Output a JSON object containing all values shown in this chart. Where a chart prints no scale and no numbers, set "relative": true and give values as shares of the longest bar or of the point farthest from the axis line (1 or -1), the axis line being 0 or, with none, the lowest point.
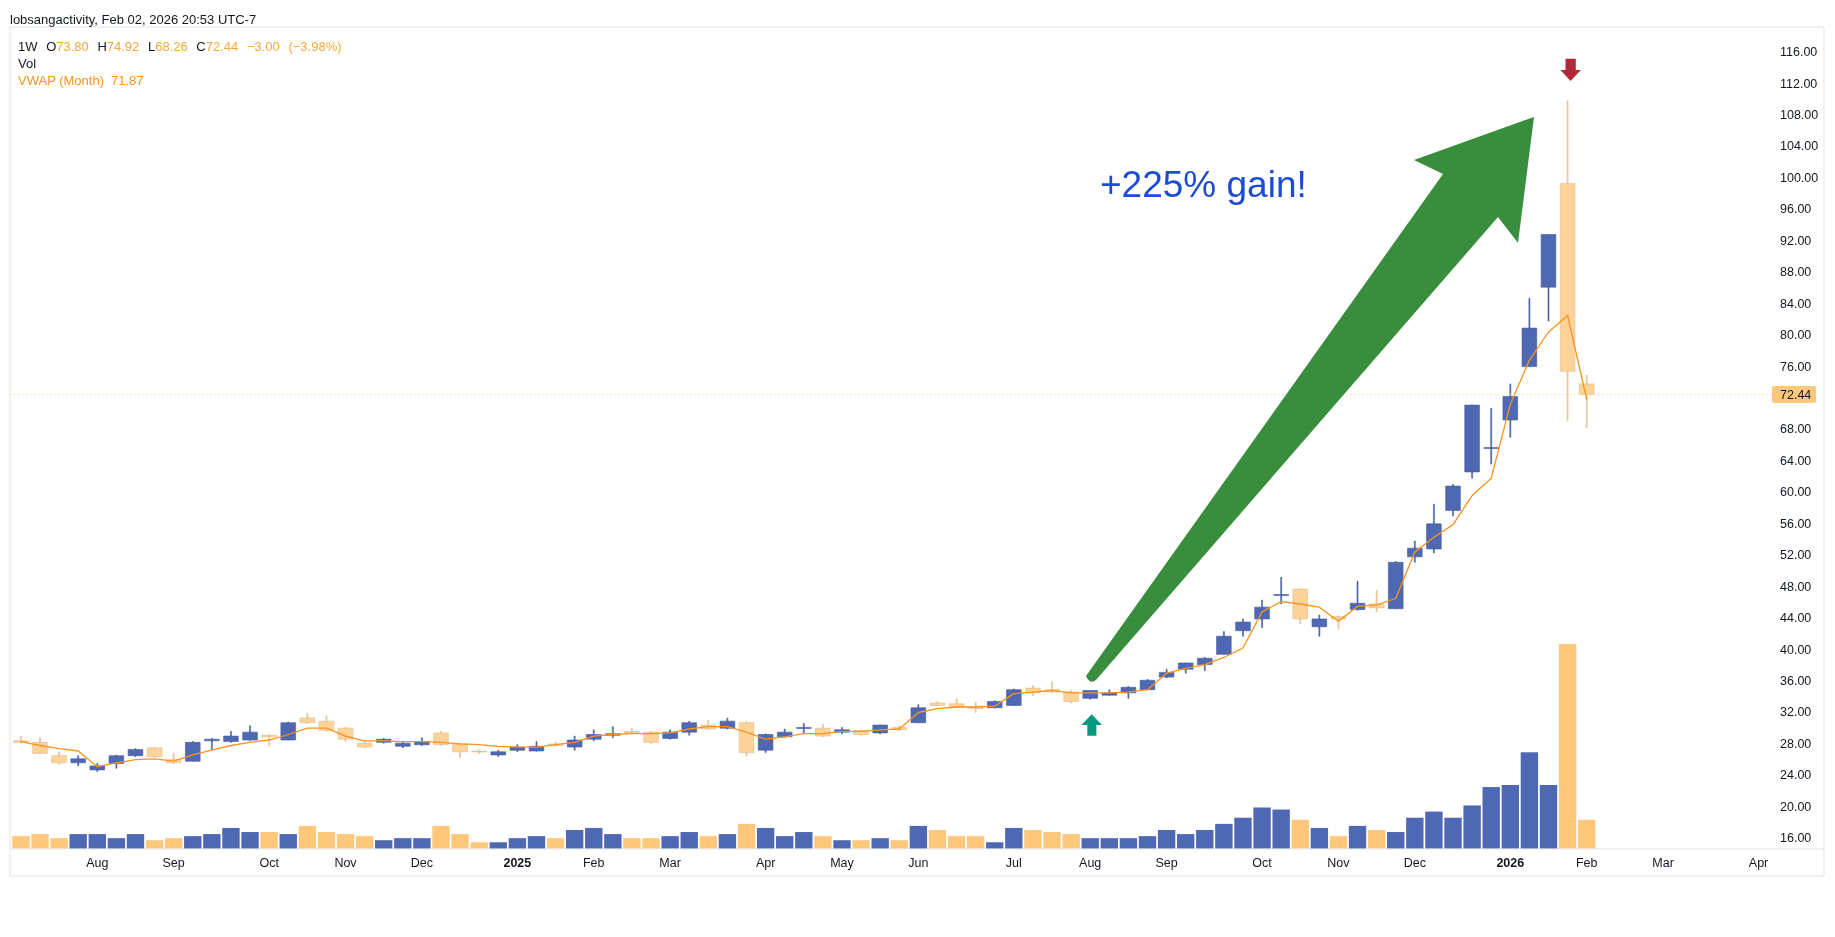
{
  "chart_data": [
    {
      "type": "candlestick",
      "title": "lobsangactivity, Feb 02, 2026 20:53 UTC-7",
      "subtitle": "1W O73.80 H74.92 L68.26 C72.44 −3.00 (−3.98%)",
      "x": [
        "2024-07-08",
        "2024-07-15",
        "2024-07-22",
        "2024-07-29",
        "2024-08-05",
        "2024-08-12",
        "2024-08-19",
        "2024-08-26",
        "2024-09-02",
        "2024-09-09",
        "2024-09-16",
        "2024-09-23",
        "2024-09-30",
        "2024-10-07",
        "2024-10-14",
        "2024-10-21",
        "2024-10-28",
        "2024-11-04",
        "2024-11-11",
        "2024-11-18",
        "2024-11-25",
        "2024-12-02",
        "2024-12-09",
        "2024-12-16",
        "2024-12-23",
        "2024-12-30",
        "2025-01-06",
        "2025-01-13",
        "2025-01-20",
        "2025-01-27",
        "2025-02-03",
        "2025-02-10",
        "2025-02-17",
        "2025-02-24",
        "2025-03-03",
        "2025-03-10",
        "2025-03-17",
        "2025-03-24",
        "2025-03-31",
        "2025-04-07",
        "2025-04-14",
        "2025-04-21",
        "2025-04-28",
        "2025-05-05",
        "2025-05-12",
        "2025-05-19",
        "2025-05-26",
        "2025-06-02",
        "2025-06-09",
        "2025-06-16",
        "2025-06-23",
        "2025-06-30",
        "2025-07-07",
        "2025-07-14",
        "2025-07-21",
        "2025-07-28",
        "2025-08-04",
        "2025-08-11",
        "2025-08-18",
        "2025-08-25",
        "2025-09-01",
        "2025-09-08",
        "2025-09-15",
        "2025-09-22",
        "2025-09-29",
        "2025-10-06",
        "2025-10-13",
        "2025-10-20",
        "2025-10-27",
        "2025-11-03",
        "2025-11-10",
        "2025-11-17",
        "2025-11-24",
        "2025-12-01",
        "2025-12-08",
        "2025-12-15",
        "2025-12-22",
        "2025-12-29",
        "2026-01-05",
        "2026-01-12",
        "2026-01-19",
        "2026-01-26",
        "2026-02-02"
      ],
      "ohlc": [
        [
          28.4,
          29.0,
          28.1,
          28.2
        ],
        [
          28.2,
          28.8,
          26.7,
          26.8
        ],
        [
          26.5,
          27.0,
          25.4,
          25.6
        ],
        [
          25.6,
          26.5,
          25.2,
          26.1
        ],
        [
          24.7,
          25.5,
          24.5,
          25.2
        ],
        [
          25.5,
          26.6,
          24.9,
          26.5
        ],
        [
          26.5,
          27.4,
          26.4,
          27.3
        ],
        [
          27.5,
          27.6,
          26.3,
          26.4
        ],
        [
          26.0,
          26.8,
          25.5,
          25.6
        ],
        [
          25.8,
          28.3,
          25.8,
          28.2
        ],
        [
          28.4,
          28.7,
          27.3,
          28.6
        ],
        [
          28.3,
          29.6,
          28.2,
          29.0
        ],
        [
          28.5,
          30.3,
          28.4,
          29.5
        ],
        [
          29.1,
          29.2,
          27.7,
          28.9
        ],
        [
          28.5,
          30.8,
          28.5,
          30.7
        ],
        [
          31.3,
          31.9,
          30.6,
          30.7
        ],
        [
          30.9,
          31.6,
          29.6,
          29.7
        ],
        [
          30.0,
          30.1,
          28.3,
          28.6
        ],
        [
          28.1,
          28.4,
          27.5,
          27.6
        ],
        [
          28.2,
          28.7,
          28.1,
          28.6
        ],
        [
          27.7,
          28.2,
          27.5,
          28.1
        ],
        [
          27.9,
          28.8,
          27.8,
          28.3
        ],
        [
          29.4,
          29.6,
          27.8,
          27.9
        ],
        [
          28.0,
          28.1,
          26.3,
          27.0
        ],
        [
          27.1,
          27.2,
          26.8,
          27.0
        ],
        [
          26.6,
          27.2,
          26.4,
          27.0
        ],
        [
          27.2,
          27.9,
          27.0,
          27.6
        ],
        [
          27.1,
          28.3,
          27.1,
          27.7
        ],
        [
          28.0,
          28.2,
          27.7,
          27.8
        ],
        [
          27.6,
          29.0,
          27.2,
          28.5
        ],
        [
          28.6,
          29.8,
          28.4,
          29.2
        ],
        [
          29.1,
          30.2,
          28.8,
          29.3
        ],
        [
          29.6,
          30.0,
          29.3,
          29.4
        ],
        [
          29.5,
          29.6,
          28.0,
          28.2
        ],
        [
          28.7,
          29.8,
          28.6,
          29.5
        ],
        [
          29.5,
          30.9,
          29.1,
          30.7
        ],
        [
          30.4,
          31.0,
          29.8,
          29.9
        ],
        [
          30.0,
          31.3,
          29.9,
          30.9
        ],
        [
          30.7,
          30.9,
          26.5,
          26.9
        ],
        [
          27.2,
          29.3,
          26.9,
          29.2
        ],
        [
          28.9,
          29.9,
          28.9,
          29.5
        ],
        [
          30.0,
          30.6,
          29.4,
          30.1
        ],
        [
          30.0,
          30.5,
          28.9,
          29.0
        ],
        [
          29.5,
          30.1,
          29.3,
          29.8
        ],
        [
          29.7,
          29.8,
          29.1,
          29.2
        ],
        [
          29.4,
          30.4,
          29.3,
          30.4
        ],
        [
          30.1,
          30.3,
          29.7,
          29.8
        ],
        [
          30.7,
          33.0,
          30.7,
          32.6
        ],
        [
          33.2,
          33.4,
          32.8,
          32.9
        ],
        [
          33.1,
          33.8,
          32.6,
          32.7
        ],
        [
          32.7,
          33.3,
          32.0,
          32.5
        ],
        [
          32.6,
          33.5,
          32.6,
          33.4
        ],
        [
          32.9,
          35.0,
          32.9,
          34.9
        ],
        [
          35.1,
          35.4,
          34.1,
          34.5
        ],
        [
          34.9,
          35.9,
          34.5,
          34.6
        ],
        [
          34.6,
          34.8,
          33.2,
          33.4
        ],
        [
          33.8,
          34.8,
          33.7,
          34.8
        ],
        [
          34.2,
          34.9,
          34.2,
          34.5
        ],
        [
          34.5,
          35.3,
          33.8,
          35.2
        ],
        [
          34.9,
          36.2,
          34.9,
          36.1
        ],
        [
          36.5,
          37.5,
          36.4,
          37.1
        ],
        [
          37.5,
          38.3,
          37.0,
          38.3
        ],
        [
          38.1,
          39.0,
          37.3,
          38.9
        ],
        [
          39.4,
          42.3,
          39.4,
          41.7
        ],
        [
          42.4,
          43.9,
          41.7,
          43.5
        ],
        [
          43.9,
          46.3,
          42.8,
          45.4
        ],
        [
          46.9,
          49.2,
          45.8,
          47.0
        ],
        [
          47.7,
          47.7,
          43.3,
          43.9
        ],
        [
          42.9,
          44.4,
          41.7,
          43.9
        ],
        [
          44.2,
          44.3,
          42.6,
          43.9
        ],
        [
          45.1,
          48.7,
          45.0,
          45.9
        ],
        [
          45.8,
          47.5,
          44.8,
          45.3
        ],
        [
          45.2,
          51.2,
          45.2,
          51.1
        ],
        [
          51.8,
          53.8,
          51.1,
          52.9
        ],
        [
          52.8,
          58.5,
          52.3,
          56.0
        ],
        [
          57.7,
          61.0,
          57.0,
          60.8
        ],
        [
          62.6,
          71.1,
          61.8,
          71.1
        ],
        [
          65.6,
          70.7,
          63.6,
          65.7
        ],
        [
          69.2,
          73.8,
          67.0,
          72.2
        ],
        [
          76.0,
          84.7,
          76.0,
          80.9
        ],
        [
          86.1,
          92.8,
          81.8,
          92.8
        ],
        [
          99.3,
          109.8,
          69.1,
          75.4
        ],
        [
          73.8,
          74.92,
          68.26,
          72.44
        ]
      ],
      "colors": [
        "#fdd39a",
        "#fdd39a",
        "#fdd39a",
        "#4f68b3",
        "#4f68b3",
        "#4f68b3",
        "#4f68b3",
        "#fdd39a",
        "#fdd39a",
        "#4f68b3",
        "#4f68b3",
        "#4f68b3",
        "#4f68b3",
        "#fdd39a",
        "#4f68b3",
        "#fdd39a",
        "#fdd39a",
        "#fdd39a",
        "#fdd39a",
        "#4f68b3",
        "#4f68b3",
        "#4f68b3",
        "#fdd39a",
        "#fdd39a",
        "#fdd39a",
        "#4f68b3",
        "#4f68b3",
        "#4f68b3",
        "#fdd39a",
        "#4f68b3",
        "#4f68b3",
        "#4f68b3",
        "#fdd39a",
        "#fdd39a",
        "#4f68b3",
        "#4f68b3",
        "#fdd39a",
        "#4f68b3",
        "#fdd39a",
        "#4f68b3",
        "#4f68b3",
        "#4f68b3",
        "#fdd39a",
        "#4f68b3",
        "#fdd39a",
        "#4f68b3",
        "#fdd39a",
        "#4f68b3",
        "#fdd39a",
        "#fdd39a",
        "#fdd39a",
        "#4f68b3",
        "#4f68b3",
        "#fdd39a",
        "#fdd39a",
        "#fdd39a",
        "#4f68b3",
        "#4f68b3",
        "#4f68b3",
        "#4f68b3",
        "#4f68b3",
        "#4f68b3",
        "#4f68b3",
        "#4f68b3",
        "#4f68b3",
        "#4f68b3",
        "#4f68b3",
        "#fdd39a",
        "#4f68b3",
        "#fdd39a",
        "#4f68b3",
        "#fdd39a",
        "#4f68b3",
        "#4f68b3",
        "#4f68b3",
        "#4f68b3",
        "#4f68b3",
        "#4f68b3",
        "#4f68b3",
        "#4f68b3",
        "#4f68b3",
        "#fdd39a",
        "#fdd39a"
      ],
      "series": [
        {
          "name": "VWAP (Month)",
          "type": "line",
          "color": "#f7931e",
          "values": [
            28.3,
            27.8,
            27.4,
            27.1,
            25.1,
            25.6,
            26.0,
            26.1,
            25.8,
            26.6,
            27.2,
            27.8,
            28.2,
            28.5,
            29.2,
            30.0,
            30.0,
            29.0,
            28.4,
            28.4,
            28.3,
            28.3,
            28.2,
            28.0,
            27.9,
            27.7,
            27.6,
            27.6,
            27.9,
            28.2,
            29.0,
            29.2,
            29.3,
            29.3,
            29.4,
            29.9,
            30.2,
            30.2,
            29.5,
            28.6,
            28.9,
            29.3,
            29.3,
            29.6,
            29.6,
            29.8,
            29.9,
            32.0,
            32.5,
            32.7,
            32.7,
            32.8,
            34.4,
            34.6,
            34.8,
            34.5,
            34.5,
            34.5,
            34.6,
            34.9,
            37.0,
            37.6,
            38.1,
            39.0,
            40.2,
            44.8,
            46.1,
            45.8,
            45.4,
            43.6,
            45.5,
            45.7,
            46.5,
            52.4,
            54.3,
            55.9,
            59.6,
            61.8,
            71.2,
            76.8,
            80.4,
            82.5,
            71.87
          ]
        }
      ],
      "xlim": [
        "2024-07-04",
        "2026-04-30"
      ],
      "ylim": [
        11.2,
        119.2
      ],
      "xticks": [
        {
          "value": "2024-08-05",
          "label": "Aug"
        },
        {
          "value": "2024-09-02",
          "label": "Sep"
        },
        {
          "value": "2024-10-07",
          "label": "Oct"
        },
        {
          "value": "2024-11-04",
          "label": "Nov"
        },
        {
          "value": "2024-12-02",
          "label": "Dec"
        },
        {
          "value": "2025-01-06",
          "label": "2025"
        },
        {
          "value": "2025-02-03",
          "label": "Feb"
        },
        {
          "value": "2025-03-03",
          "label": "Mar"
        },
        {
          "value": "2025-04-07",
          "label": "Apr"
        },
        {
          "value": "2025-05-05",
          "label": "May"
        },
        {
          "value": "2025-06-02",
          "label": "Jun"
        },
        {
          "value": "2025-07-07",
          "label": "Jul"
        },
        {
          "value": "2025-08-04",
          "label": "Aug"
        },
        {
          "value": "2025-09-01",
          "label": "Sep"
        },
        {
          "value": "2025-10-06",
          "label": "Oct"
        },
        {
          "value": "2025-11-03",
          "label": "Nov"
        },
        {
          "value": "2025-12-01",
          "label": "Dec"
        },
        {
          "value": "2026-01-05",
          "label": "2026"
        },
        {
          "value": "2026-02-02",
          "label": "Feb"
        },
        {
          "value": "2026-03-02",
          "label": "Mar"
        },
        {
          "value": "2026-04-06",
          "label": "Apr"
        }
      ],
      "yticks": [
        {
          "value": 16,
          "label": "16.00"
        },
        {
          "value": 20,
          "label": "20.00"
        },
        {
          "value": 24,
          "label": "24.00"
        },
        {
          "value": 28,
          "label": "28.00"
        },
        {
          "value": 32,
          "label": "32.00"
        },
        {
          "value": 36,
          "label": "36.00"
        },
        {
          "value": 40,
          "label": "40.00"
        },
        {
          "value": 44,
          "label": "44.00"
        },
        {
          "value": 48,
          "label": "48.00"
        },
        {
          "value": 52,
          "label": "52.00"
        },
        {
          "value": 56,
          "label": "56.00"
        },
        {
          "value": 60,
          "label": "60.00"
        },
        {
          "value": 64,
          "label": "64.00"
        },
        {
          "value": 68,
          "label": "68.00"
        },
        {
          "value": 76,
          "label": "76.00"
        },
        {
          "value": 80,
          "label": "80.00"
        },
        {
          "value": 84,
          "label": "84.00"
        },
        {
          "value": 88,
          "label": "88.00"
        },
        {
          "value": 92,
          "label": "92.00"
        },
        {
          "value": 96,
          "label": "96.00"
        },
        {
          "value": 100,
          "label": "100.00"
        },
        {
          "value": 104,
          "label": "104.00"
        },
        {
          "value": 108,
          "label": "108.00"
        },
        {
          "value": 112,
          "label": "112.00"
        },
        {
          "value": 116,
          "label": "116.00"
        }
      ],
      "ref_lines": [
        {
          "axis": "y",
          "value": 72.44,
          "label": "72.44",
          "color": "#fdc87a",
          "line_style": "dotted"
        }
      ],
      "annotations": [
        "+225% gain!",
        "71.87"
      ],
      "legend": "top left"
    },
    {
      "type": "bar",
      "title": "Vol",
      "relative": true,
      "x": [
        "2024-07-08",
        "2024-07-15",
        "2024-07-22",
        "2024-07-29",
        "2024-08-05",
        "2024-08-12",
        "2024-08-19",
        "2024-08-26",
        "2024-09-02",
        "2024-09-09",
        "2024-09-16",
        "2024-09-23",
        "2024-09-30",
        "2024-10-07",
        "2024-10-14",
        "2024-10-21",
        "2024-10-28",
        "2024-11-04",
        "2024-11-11",
        "2024-11-18",
        "2024-11-25",
        "2024-12-02",
        "2024-12-09",
        "2024-12-16",
        "2024-12-23",
        "2024-12-30",
        "2025-01-06",
        "2025-01-13",
        "2025-01-20",
        "2025-01-27",
        "2025-02-03",
        "2025-02-10",
        "2025-02-17",
        "2025-02-24",
        "2025-03-03",
        "2025-03-10",
        "2025-03-17",
        "2025-03-24",
        "2025-03-31",
        "2025-04-07",
        "2025-04-14",
        "2025-04-21",
        "2025-04-28",
        "2025-05-05",
        "2025-05-12",
        "2025-05-19",
        "2025-05-26",
        "2025-06-02",
        "2025-06-09",
        "2025-06-16",
        "2025-06-23",
        "2025-06-30",
        "2025-07-07",
        "2025-07-14",
        "2025-07-21",
        "2025-07-28",
        "2025-08-04",
        "2025-08-11",
        "2025-08-18",
        "2025-08-25",
        "2025-09-01",
        "2025-09-08",
        "2025-09-15",
        "2025-09-22",
        "2025-09-29",
        "2025-10-06",
        "2025-10-13",
        "2025-10-20",
        "2025-10-27",
        "2025-11-03",
        "2025-11-10",
        "2025-11-17",
        "2025-11-24",
        "2025-12-01",
        "2025-12-08",
        "2025-12-15",
        "2025-12-22",
        "2025-12-29",
        "2026-01-05",
        "2026-01-12",
        "2026-01-19",
        "2026-01-26",
        "2026-02-02"
      ],
      "values": [
        0.06,
        0.07,
        0.05,
        0.07,
        0.07,
        0.05,
        0.07,
        0.04,
        0.05,
        0.06,
        0.07,
        0.1,
        0.08,
        0.08,
        0.07,
        0.11,
        0.08,
        0.07,
        0.06,
        0.04,
        0.05,
        0.05,
        0.11,
        0.07,
        0.03,
        0.03,
        0.05,
        0.06,
        0.05,
        0.09,
        0.1,
        0.07,
        0.05,
        0.05,
        0.06,
        0.08,
        0.06,
        0.07,
        0.12,
        0.1,
        0.06,
        0.08,
        0.06,
        0.04,
        0.04,
        0.05,
        0.04,
        0.11,
        0.09,
        0.06,
        0.06,
        0.03,
        0.1,
        0.09,
        0.08,
        0.07,
        0.05,
        0.05,
        0.05,
        0.06,
        0.09,
        0.07,
        0.09,
        0.12,
        0.15,
        0.2,
        0.19,
        0.14,
        0.1,
        0.06,
        0.11,
        0.09,
        0.08,
        0.15,
        0.18,
        0.15,
        0.21,
        0.3,
        0.31,
        0.47,
        0.31,
        1,
        0.14
      ],
      "colors": [
        "#fec87c",
        "#fec87c",
        "#fec87c",
        "#4f68b3",
        "#4f68b3",
        "#4f68b3",
        "#4f68b3",
        "#fec87c",
        "#fec87c",
        "#4f68b3",
        "#4f68b3",
        "#4f68b3",
        "#4f68b3",
        "#fec87c",
        "#4f68b3",
        "#fec87c",
        "#fec87c",
        "#fec87c",
        "#fec87c",
        "#4f68b3",
        "#4f68b3",
        "#4f68b3",
        "#fec87c",
        "#fec87c",
        "#fec87c",
        "#4f68b3",
        "#4f68b3",
        "#4f68b3",
        "#fec87c",
        "#4f68b3",
        "#4f68b3",
        "#4f68b3",
        "#fec87c",
        "#fec87c",
        "#4f68b3",
        "#4f68b3",
        "#fec87c",
        "#4f68b3",
        "#fec87c",
        "#4f68b3",
        "#4f68b3",
        "#4f68b3",
        "#fec87c",
        "#4f68b3",
        "#fec87c",
        "#4f68b3",
        "#fec87c",
        "#4f68b3",
        "#fec87c",
        "#fec87c",
        "#fec87c",
        "#4f68b3",
        "#4f68b3",
        "#fec87c",
        "#fec87c",
        "#fec87c",
        "#4f68b3",
        "#4f68b3",
        "#4f68b3",
        "#4f68b3",
        "#4f68b3",
        "#4f68b3",
        "#4f68b3",
        "#4f68b3",
        "#4f68b3",
        "#4f68b3",
        "#4f68b3",
        "#fec87c",
        "#4f68b3",
        "#fec87c",
        "#4f68b3",
        "#fec87c",
        "#4f68b3",
        "#4f68b3",
        "#4f68b3",
        "#4f68b3",
        "#4f68b3",
        "#4f68b3",
        "#4f68b3",
        "#4f68b3",
        "#4f68b3",
        "#fec87c",
        "#fec87c"
      ],
      "xlim": [
        "2024-07-04",
        "2026-04-30"
      ]
    }
  ]
}
